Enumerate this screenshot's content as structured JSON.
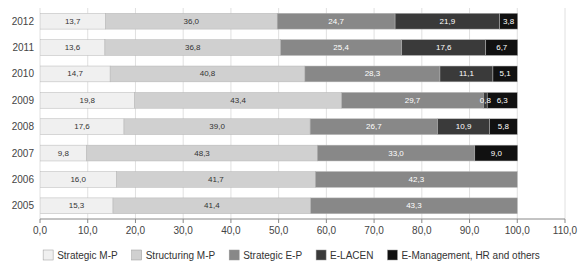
{
  "chart_data": {
    "type": "bar",
    "orientation": "horizontal",
    "stacked": true,
    "data_labels": true,
    "grid": true,
    "legend": "bottom",
    "categories": [
      "2012",
      "2011",
      "2010",
      "2009",
      "2008",
      "2007",
      "2006",
      "2005"
    ],
    "series": [
      {
        "name": "Strategic M-P",
        "color": "#f0f0f0",
        "values": [
          13.7,
          13.6,
          14.7,
          19.8,
          17.6,
          9.8,
          16.0,
          15.3
        ],
        "value_labels": [
          "13,7",
          "13,6",
          "14,7",
          "19,8",
          "17,6",
          "9,8",
          "16,0",
          "15,3"
        ]
      },
      {
        "name": "Structuring M-P",
        "color": "#d0d0d0",
        "values": [
          36.0,
          36.8,
          40.8,
          43.4,
          39.0,
          48.3,
          41.7,
          41.4
        ],
        "value_labels": [
          "36,0",
          "36,8",
          "40,8",
          "43,4",
          "39,0",
          "48,3",
          "41,7",
          "41,4"
        ]
      },
      {
        "name": "Strategic E-P",
        "color": "#888888",
        "values": [
          24.7,
          25.4,
          28.3,
          29.7,
          26.7,
          33.0,
          42.3,
          43.3
        ],
        "value_labels": [
          "24,7",
          "25,4",
          "28,3",
          "29,7",
          "26,7",
          "33,0",
          "42,3",
          "43,3"
        ]
      },
      {
        "name": "E-LACEN",
        "color": "#3a3a3a",
        "values": [
          21.9,
          17.6,
          11.1,
          0.8,
          10.9,
          0.0,
          0.0,
          0.0
        ],
        "value_labels": [
          "21,9",
          "17,6",
          "11,1",
          "0,8",
          "10,9",
          null,
          null,
          null
        ]
      },
      {
        "name": "E-Management, HR and others",
        "color": "#111111",
        "values": [
          3.8,
          6.7,
          5.1,
          6.3,
          5.8,
          9.0,
          0.0,
          0.0
        ],
        "value_labels": [
          "3,8",
          "6,7",
          "5,1",
          "6,3",
          "5,8",
          "9,0",
          null,
          null
        ]
      }
    ],
    "xlim": [
      0,
      110
    ],
    "xticks": [
      {
        "value": 0,
        "label": "0,0"
      },
      {
        "value": 10,
        "label": "10,0"
      },
      {
        "value": 20,
        "label": "20,0"
      },
      {
        "value": 30,
        "label": "30,0"
      },
      {
        "value": 40,
        "label": "40,0"
      },
      {
        "value": 50,
        "label": "50,0"
      },
      {
        "value": 60,
        "label": "60,0"
      },
      {
        "value": 70,
        "label": "70,0"
      },
      {
        "value": 80,
        "label": "80,0"
      },
      {
        "value": 90,
        "label": "90,0"
      },
      {
        "value": 100,
        "label": "100,0"
      },
      {
        "value": 110,
        "label": "110,0"
      }
    ]
  }
}
